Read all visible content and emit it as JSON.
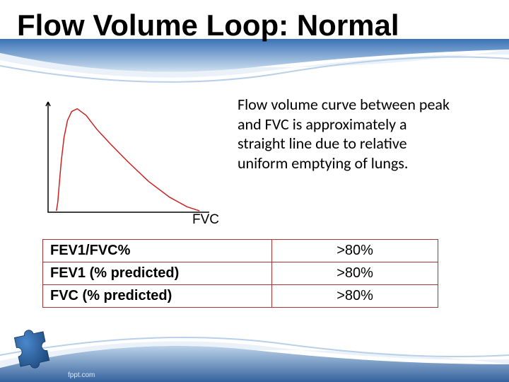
{
  "slide": {
    "title": "Flow Volume Loop: Normal"
  },
  "chart": {
    "type": "line",
    "fvc_label": "FVC",
    "axis_color": "#000000",
    "line_color": "#cc2222",
    "line_width": 1.5,
    "background": "#ffffff",
    "xlim": [
      0,
      230
    ],
    "ylim": [
      0,
      160
    ],
    "points": [
      [
        12,
        158
      ],
      [
        14,
        145
      ],
      [
        16,
        120
      ],
      [
        19,
        85
      ],
      [
        23,
        50
      ],
      [
        28,
        25
      ],
      [
        34,
        12
      ],
      [
        42,
        8
      ],
      [
        55,
        18
      ],
      [
        70,
        38
      ],
      [
        90,
        60
      ],
      [
        115,
        86
      ],
      [
        145,
        115
      ],
      [
        175,
        138
      ],
      [
        200,
        152
      ],
      [
        218,
        158
      ]
    ]
  },
  "description": "Flow volume curve between peak and FVC is approximately a straight line due to relative uniform emptying of lungs.",
  "table": {
    "border_color": "#a03030",
    "rows": [
      {
        "metric": "FEV1/FVC%",
        "value": ">80%"
      },
      {
        "metric": "FEV1 (% predicted)",
        "value": ">80%"
      },
      {
        "metric": "FVC (% predicted)",
        "value": ">80%"
      }
    ]
  },
  "swoosh": {
    "top_gradient_from": "#2f6bb3",
    "top_gradient_to": "#cfe0f0",
    "bottom_gradient_from": "#2a5a99",
    "bottom_gradient_to": "#b8d0e8"
  },
  "puzzle": {
    "fill": "#2d66a8",
    "shade": "#1f4a7e"
  },
  "footer": "fppt.com"
}
